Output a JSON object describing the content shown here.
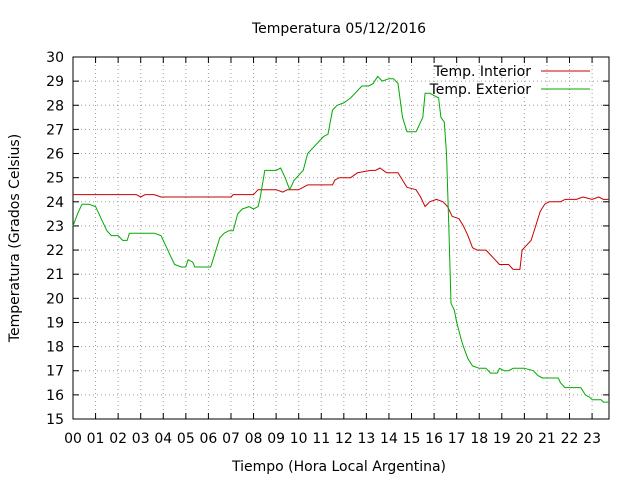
{
  "chart_data": {
    "type": "line",
    "title": "Temperatura 05/12/2016",
    "xlabel": "Tiempo (Hora Local Argentina)",
    "ylabel": "Temperatura (Grados Celsius)",
    "xlim": [
      0,
      23.75
    ],
    "ylim": [
      15,
      30
    ],
    "x_ticks": [
      "00",
      "01",
      "02",
      "03",
      "04",
      "05",
      "06",
      "07",
      "08",
      "09",
      "10",
      "11",
      "12",
      "13",
      "14",
      "15",
      "16",
      "17",
      "18",
      "19",
      "20",
      "21",
      "22",
      "23"
    ],
    "y_ticks": [
      15,
      16,
      17,
      18,
      19,
      20,
      21,
      22,
      23,
      24,
      25,
      26,
      27,
      28,
      29,
      30
    ],
    "grid": true,
    "legend_position": "top-right",
    "series": [
      {
        "name": "Temp. Interior",
        "color": "#cc0000",
        "points": [
          [
            0,
            24.3
          ],
          [
            2.8,
            24.3
          ],
          [
            3.0,
            24.2
          ],
          [
            3.2,
            24.3
          ],
          [
            3.6,
            24.3
          ],
          [
            3.9,
            24.2
          ],
          [
            4.3,
            24.2
          ],
          [
            7.0,
            24.2
          ],
          [
            7.1,
            24.3
          ],
          [
            8.0,
            24.3
          ],
          [
            8.2,
            24.5
          ],
          [
            9.0,
            24.5
          ],
          [
            9.3,
            24.4
          ],
          [
            9.5,
            24.5
          ],
          [
            10.0,
            24.5
          ],
          [
            10.2,
            24.6
          ],
          [
            10.4,
            24.7
          ],
          [
            11.5,
            24.7
          ],
          [
            11.6,
            24.9
          ],
          [
            11.8,
            25.0
          ],
          [
            12.3,
            25.0
          ],
          [
            12.6,
            25.2
          ],
          [
            13.2,
            25.3
          ],
          [
            13.4,
            25.3
          ],
          [
            13.6,
            25.4
          ],
          [
            13.9,
            25.2
          ],
          [
            14.4,
            25.2
          ],
          [
            14.6,
            24.9
          ],
          [
            14.8,
            24.6
          ],
          [
            15.2,
            24.5
          ],
          [
            15.4,
            24.2
          ],
          [
            15.6,
            23.8
          ],
          [
            15.8,
            24.0
          ],
          [
            16.1,
            24.1
          ],
          [
            16.4,
            24.0
          ],
          [
            16.6,
            23.8
          ],
          [
            16.8,
            23.4
          ],
          [
            17.1,
            23.3
          ],
          [
            17.3,
            23.0
          ],
          [
            17.5,
            22.6
          ],
          [
            17.7,
            22.1
          ],
          [
            17.9,
            22.0
          ],
          [
            18.3,
            22.0
          ],
          [
            18.5,
            21.8
          ],
          [
            18.7,
            21.6
          ],
          [
            18.9,
            21.4
          ],
          [
            19.3,
            21.4
          ],
          [
            19.5,
            21.2
          ],
          [
            19.8,
            21.2
          ],
          [
            19.9,
            22.0
          ],
          [
            20.1,
            22.2
          ],
          [
            20.3,
            22.4
          ],
          [
            20.5,
            23.0
          ],
          [
            20.7,
            23.6
          ],
          [
            20.9,
            23.9
          ],
          [
            21.1,
            24.0
          ],
          [
            21.6,
            24.0
          ],
          [
            21.8,
            24.1
          ],
          [
            22.3,
            24.1
          ],
          [
            22.6,
            24.2
          ],
          [
            23.0,
            24.1
          ],
          [
            23.3,
            24.2
          ],
          [
            23.5,
            24.1
          ],
          [
            23.75,
            24.1
          ]
        ]
      },
      {
        "name": "Temp. Exterior",
        "color": "#00aa00",
        "points": [
          [
            0,
            23.0
          ],
          [
            0.2,
            23.5
          ],
          [
            0.4,
            23.9
          ],
          [
            0.7,
            23.9
          ],
          [
            1.0,
            23.8
          ],
          [
            1.2,
            23.4
          ],
          [
            1.5,
            22.8
          ],
          [
            1.7,
            22.6
          ],
          [
            2.0,
            22.6
          ],
          [
            2.2,
            22.4
          ],
          [
            2.4,
            22.4
          ],
          [
            2.5,
            22.7
          ],
          [
            2.8,
            22.7
          ],
          [
            3.6,
            22.7
          ],
          [
            3.9,
            22.6
          ],
          [
            4.1,
            22.2
          ],
          [
            4.3,
            21.8
          ],
          [
            4.5,
            21.4
          ],
          [
            4.8,
            21.3
          ],
          [
            5.0,
            21.3
          ],
          [
            5.1,
            21.6
          ],
          [
            5.3,
            21.5
          ],
          [
            5.4,
            21.3
          ],
          [
            6.1,
            21.3
          ],
          [
            6.3,
            21.9
          ],
          [
            6.5,
            22.5
          ],
          [
            6.7,
            22.7
          ],
          [
            6.9,
            22.8
          ],
          [
            7.1,
            22.8
          ],
          [
            7.3,
            23.5
          ],
          [
            7.5,
            23.7
          ],
          [
            7.8,
            23.8
          ],
          [
            8.0,
            23.7
          ],
          [
            8.2,
            23.8
          ],
          [
            8.3,
            24.2
          ],
          [
            8.5,
            25.3
          ],
          [
            9.0,
            25.3
          ],
          [
            9.2,
            25.4
          ],
          [
            9.4,
            25.0
          ],
          [
            9.6,
            24.5
          ],
          [
            9.8,
            24.9
          ],
          [
            10.0,
            25.1
          ],
          [
            10.2,
            25.3
          ],
          [
            10.4,
            26.0
          ],
          [
            10.6,
            26.2
          ],
          [
            10.8,
            26.4
          ],
          [
            11.1,
            26.7
          ],
          [
            11.3,
            26.8
          ],
          [
            11.5,
            27.8
          ],
          [
            11.7,
            28.0
          ],
          [
            12.0,
            28.1
          ],
          [
            12.3,
            28.3
          ],
          [
            12.5,
            28.5
          ],
          [
            12.8,
            28.8
          ],
          [
            13.1,
            28.8
          ],
          [
            13.3,
            28.9
          ],
          [
            13.5,
            29.2
          ],
          [
            13.7,
            29.0
          ],
          [
            14.0,
            29.1
          ],
          [
            14.2,
            29.1
          ],
          [
            14.4,
            28.9
          ],
          [
            14.6,
            27.5
          ],
          [
            14.8,
            26.9
          ],
          [
            15.2,
            26.9
          ],
          [
            15.3,
            27.1
          ],
          [
            15.5,
            27.5
          ],
          [
            15.6,
            28.5
          ],
          [
            15.8,
            28.5
          ],
          [
            16.0,
            28.4
          ],
          [
            16.2,
            28.3
          ],
          [
            16.3,
            27.5
          ],
          [
            16.45,
            27.3
          ],
          [
            16.55,
            26.0
          ],
          [
            16.65,
            23.0
          ],
          [
            16.75,
            19.8
          ],
          [
            16.9,
            19.5
          ],
          [
            17.0,
            19.0
          ],
          [
            17.2,
            18.3
          ],
          [
            17.3,
            18.0
          ],
          [
            17.5,
            17.5
          ],
          [
            17.7,
            17.2
          ],
          [
            18.0,
            17.1
          ],
          [
            18.3,
            17.1
          ],
          [
            18.5,
            16.9
          ],
          [
            18.8,
            16.9
          ],
          [
            18.9,
            17.1
          ],
          [
            19.1,
            17.0
          ],
          [
            19.3,
            17.0
          ],
          [
            19.5,
            17.1
          ],
          [
            20.0,
            17.1
          ],
          [
            20.4,
            17.0
          ],
          [
            20.6,
            16.8
          ],
          [
            20.8,
            16.7
          ],
          [
            21.5,
            16.7
          ],
          [
            21.6,
            16.5
          ],
          [
            21.8,
            16.3
          ],
          [
            22.5,
            16.3
          ],
          [
            22.7,
            16.0
          ],
          [
            22.9,
            15.9
          ],
          [
            23.0,
            15.8
          ],
          [
            23.4,
            15.8
          ],
          [
            23.5,
            15.7
          ],
          [
            23.75,
            15.7
          ]
        ]
      }
    ]
  }
}
